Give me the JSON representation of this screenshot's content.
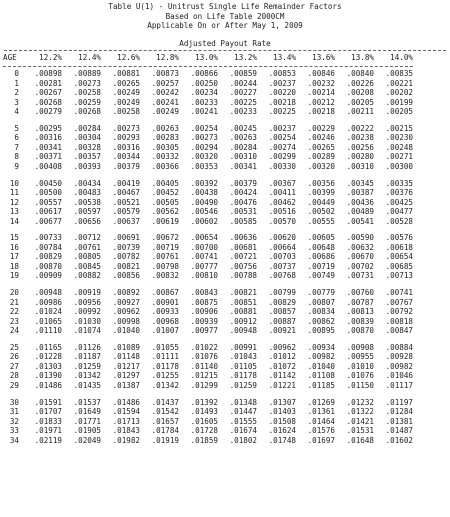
{
  "header": {
    "title": "Table U(1) - Unitrust Single Life Remainder Factors",
    "line2": "Based on Life Table 2000CM",
    "line3": "Applicable On or After May 1, 2009",
    "subtitle": "Adjusted Payout Rate"
  },
  "table": {
    "age_label": "AGE",
    "rates": [
      "12.2%",
      "12.4%",
      "12.6%",
      "12.8%",
      "13.0%",
      "13.2%",
      "13.4%",
      "13.6%",
      "13.8%",
      "14.0%"
    ],
    "groups": [
      [
        {
          "age": "0",
          "values": [
            ".00898",
            ".00889",
            ".00881",
            ".00873",
            ".00866",
            ".00859",
            ".00853",
            ".00846",
            ".00840",
            ".00835"
          ]
        },
        {
          "age": "1",
          "values": [
            ".00281",
            ".00273",
            ".00265",
            ".00257",
            ".00250",
            ".00244",
            ".00237",
            ".00232",
            ".00226",
            ".00221"
          ]
        },
        {
          "age": "2",
          "values": [
            ".00267",
            ".00258",
            ".00249",
            ".00242",
            ".00234",
            ".00227",
            ".00220",
            ".00214",
            ".00208",
            ".00202"
          ]
        },
        {
          "age": "3",
          "values": [
            ".00268",
            ".00259",
            ".00249",
            ".00241",
            ".00233",
            ".00225",
            ".00218",
            ".00212",
            ".00205",
            ".00199"
          ]
        },
        {
          "age": "4",
          "values": [
            ".00279",
            ".00268",
            ".00258",
            ".00249",
            ".00241",
            ".00233",
            ".00225",
            ".00218",
            ".00211",
            ".00205"
          ]
        }
      ],
      [
        {
          "age": "5",
          "values": [
            ".00295",
            ".00284",
            ".00273",
            ".00263",
            ".00254",
            ".00245",
            ".00237",
            ".00229",
            ".00222",
            ".00215"
          ]
        },
        {
          "age": "6",
          "values": [
            ".00316",
            ".00304",
            ".00293",
            ".00283",
            ".00273",
            ".00263",
            ".00254",
            ".00246",
            ".00238",
            ".00230"
          ]
        },
        {
          "age": "7",
          "values": [
            ".00341",
            ".00328",
            ".00316",
            ".00305",
            ".00294",
            ".00284",
            ".00274",
            ".00265",
            ".00256",
            ".00248"
          ]
        },
        {
          "age": "8",
          "values": [
            ".00371",
            ".00357",
            ".00344",
            ".00332",
            ".00320",
            ".00310",
            ".00299",
            ".00289",
            ".00280",
            ".00271"
          ]
        },
        {
          "age": "9",
          "values": [
            ".00408",
            ".00393",
            ".00379",
            ".00366",
            ".00353",
            ".00341",
            ".00330",
            ".00320",
            ".00310",
            ".00300"
          ]
        }
      ],
      [
        {
          "age": "10",
          "values": [
            ".00450",
            ".00434",
            ".00419",
            ".00405",
            ".00392",
            ".00379",
            ".00367",
            ".00356",
            ".00345",
            ".00335"
          ]
        },
        {
          "age": "11",
          "values": [
            ".00500",
            ".00483",
            ".00467",
            ".00452",
            ".00438",
            ".00424",
            ".00411",
            ".00399",
            ".00387",
            ".00376"
          ]
        },
        {
          "age": "12",
          "values": [
            ".00557",
            ".00538",
            ".00521",
            ".00505",
            ".00490",
            ".00476",
            ".00462",
            ".00449",
            ".00436",
            ".00425"
          ]
        },
        {
          "age": "13",
          "values": [
            ".00617",
            ".00597",
            ".00579",
            ".00562",
            ".00546",
            ".00531",
            ".00516",
            ".00502",
            ".00489",
            ".00477"
          ]
        },
        {
          "age": "14",
          "values": [
            ".00677",
            ".00656",
            ".00637",
            ".00619",
            ".00602",
            ".00585",
            ".00570",
            ".00555",
            ".00541",
            ".00528"
          ]
        }
      ],
      [
        {
          "age": "15",
          "values": [
            ".00733",
            ".00712",
            ".00691",
            ".00672",
            ".00654",
            ".00636",
            ".00620",
            ".00605",
            ".00590",
            ".00576"
          ]
        },
        {
          "age": "16",
          "values": [
            ".00784",
            ".00761",
            ".00739",
            ".00719",
            ".00700",
            ".00681",
            ".00664",
            ".00648",
            ".00632",
            ".00618"
          ]
        },
        {
          "age": "17",
          "values": [
            ".00829",
            ".00805",
            ".00782",
            ".00761",
            ".00741",
            ".00721",
            ".00703",
            ".00686",
            ".00670",
            ".00654"
          ]
        },
        {
          "age": "18",
          "values": [
            ".00870",
            ".00845",
            ".00821",
            ".00798",
            ".00777",
            ".00756",
            ".00737",
            ".00719",
            ".00702",
            ".00685"
          ]
        },
        {
          "age": "19",
          "values": [
            ".00909",
            ".00882",
            ".00856",
            ".00832",
            ".00810",
            ".00788",
            ".00768",
            ".00749",
            ".00731",
            ".00713"
          ]
        }
      ],
      [
        {
          "age": "20",
          "values": [
            ".00948",
            ".00919",
            ".00892",
            ".00867",
            ".00843",
            ".00821",
            ".00799",
            ".00779",
            ".00760",
            ".00741"
          ]
        },
        {
          "age": "21",
          "values": [
            ".00986",
            ".00956",
            ".00927",
            ".00901",
            ".00875",
            ".00851",
            ".00829",
            ".00807",
            ".00787",
            ".00767"
          ]
        },
        {
          "age": "22",
          "values": [
            ".01024",
            ".00992",
            ".00962",
            ".00933",
            ".00906",
            ".00881",
            ".00857",
            ".00834",
            ".00813",
            ".00792"
          ]
        },
        {
          "age": "23",
          "values": [
            ".01065",
            ".01030",
            ".00998",
            ".00968",
            ".00939",
            ".00912",
            ".00887",
            ".00862",
            ".00839",
            ".00818"
          ]
        },
        {
          "age": "24",
          "values": [
            ".01110",
            ".01074",
            ".01040",
            ".01007",
            ".00977",
            ".00948",
            ".00921",
            ".00895",
            ".00870",
            ".00847"
          ]
        }
      ],
      [
        {
          "age": "25",
          "values": [
            ".01165",
            ".01126",
            ".01089",
            ".01055",
            ".01022",
            ".00991",
            ".00962",
            ".00934",
            ".00908",
            ".00884"
          ]
        },
        {
          "age": "26",
          "values": [
            ".01228",
            ".01187",
            ".01148",
            ".01111",
            ".01076",
            ".01043",
            ".01012",
            ".00982",
            ".00955",
            ".00928"
          ]
        },
        {
          "age": "27",
          "values": [
            ".01303",
            ".01259",
            ".01217",
            ".01178",
            ".01140",
            ".01105",
            ".01072",
            ".01040",
            ".01010",
            ".00982"
          ]
        },
        {
          "age": "28",
          "values": [
            ".01390",
            ".01342",
            ".01297",
            ".01255",
            ".01215",
            ".01178",
            ".01142",
            ".01108",
            ".01076",
            ".01046"
          ]
        },
        {
          "age": "29",
          "values": [
            ".01486",
            ".01435",
            ".01387",
            ".01342",
            ".01299",
            ".01259",
            ".01221",
            ".01185",
            ".01150",
            ".01117"
          ]
        }
      ],
      [
        {
          "age": "30",
          "values": [
            ".01591",
            ".01537",
            ".01486",
            ".01437",
            ".01392",
            ".01348",
            ".01307",
            ".01269",
            ".01232",
            ".01197"
          ]
        },
        {
          "age": "31",
          "values": [
            ".01707",
            ".01649",
            ".01594",
            ".01542",
            ".01493",
            ".01447",
            ".01403",
            ".01361",
            ".01322",
            ".01284"
          ]
        },
        {
          "age": "32",
          "values": [
            ".01833",
            ".01771",
            ".01713",
            ".01657",
            ".01605",
            ".01555",
            ".01508",
            ".01464",
            ".01421",
            ".01381"
          ]
        },
        {
          "age": "33",
          "values": [
            ".01971",
            ".01905",
            ".01843",
            ".01784",
            ".01728",
            ".01674",
            ".01624",
            ".01576",
            ".01531",
            ".01487"
          ]
        },
        {
          "age": "34",
          "values": [
            ".02119",
            ".02049",
            ".01982",
            ".01919",
            ".01859",
            ".01802",
            ".01748",
            ".01697",
            ".01648",
            ".01602"
          ]
        }
      ]
    ]
  }
}
